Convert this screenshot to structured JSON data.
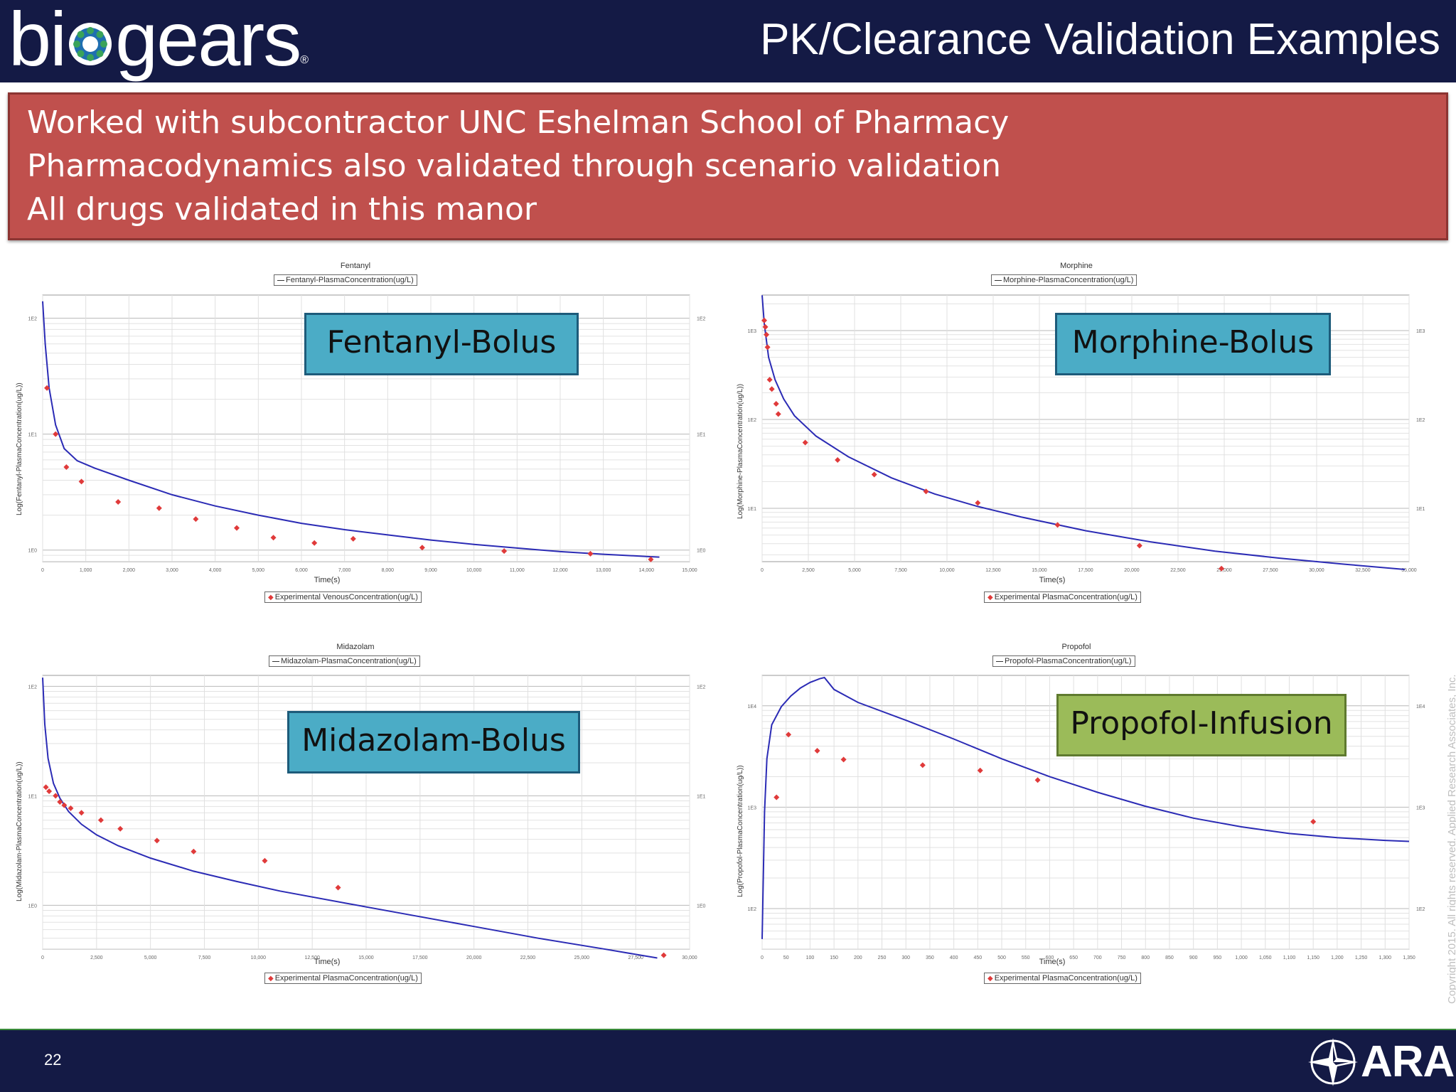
{
  "header": {
    "logo_text_a": "bi",
    "logo_text_b": "gears",
    "logo_reg": "®",
    "title": "PK/Clearance Validation Examples"
  },
  "bullets": [
    "Worked with subcontractor UNC Eshelman School of Pharmacy",
    "Pharmacodynamics also validated through scenario validation",
    "All drugs validated in this manor"
  ],
  "footer": {
    "page_number": "22",
    "logo_text": "ARA",
    "copyright": "Copyright 2015. All rights reserved. Applied Research Associates, Inc."
  },
  "colors": {
    "header_bg": "#141a45",
    "callout_blue": "#4bacc6",
    "callout_green": "#9bbb59",
    "model_line": "#2b2bb5",
    "experimental_points": "#e03a3a",
    "red_box": "#c0504d"
  },
  "chart_data": [
    {
      "type": "line",
      "title": "Fentanyl",
      "callout": "Fentanyl-Bolus",
      "xlabel": "Time(s)",
      "ylabel": "Log(Fentanyl-PlasmaConcentration(ug/L))",
      "legend_top": "Fentanyl-PlasmaConcentration(ug/L)",
      "legend_bottom": "Experimental VenousConcentration(ug/L)",
      "xlim": [
        0,
        15000
      ],
      "ylim_log10": [
        -0.1,
        2.2
      ],
      "log_y": true,
      "x_ticks": [
        "0",
        "1,000",
        "2,000",
        "3,000",
        "4,000",
        "5,000",
        "6,000",
        "7,000",
        "8,000",
        "9,000",
        "10,000",
        "11,000",
        "12,000",
        "13,000",
        "14,000",
        "15,000"
      ],
      "y_ticks": [
        {
          "label": "1E0",
          "log": 0
        },
        {
          "label": "1E1",
          "log": 1
        },
        {
          "label": "1E2",
          "log": 2
        }
      ],
      "series": [
        {
          "name": "Fentanyl-PlasmaConcentration(ug/L)",
          "kind": "line",
          "x": [
            0,
            60,
            150,
            300,
            500,
            800,
            1200,
            2000,
            3000,
            4000,
            5000,
            6000,
            7000,
            8000,
            9000,
            10000,
            11000,
            12000,
            13000,
            14000,
            14300
          ],
          "y": [
            140,
            60,
            25,
            12,
            7.5,
            5.9,
            5.1,
            4.0,
            3.0,
            2.4,
            2.0,
            1.7,
            1.5,
            1.35,
            1.22,
            1.12,
            1.04,
            0.97,
            0.92,
            0.88,
            0.87
          ]
        },
        {
          "name": "Experimental VenousConcentration(ug/L)",
          "kind": "scatter",
          "x": [
            100,
            300,
            550,
            900,
            1750,
            2700,
            3550,
            4500,
            5350,
            6300,
            7200,
            8800,
            10700,
            12700,
            14100
          ],
          "y": [
            25,
            10,
            5.2,
            3.9,
            2.6,
            2.3,
            1.85,
            1.55,
            1.28,
            1.15,
            1.25,
            1.05,
            0.98,
            0.93,
            0.83
          ]
        }
      ]
    },
    {
      "type": "line",
      "title": "Morphine",
      "callout": "Morphine-Bolus",
      "xlabel": "Time(s)",
      "ylabel": "Log(Morphine-PlasmaConcentration(ug/L))",
      "legend_top": "Morphine-PlasmaConcentration(ug/L)",
      "legend_bottom": "Experimental PlasmaConcentration(ug/L)",
      "xlim": [
        0,
        30000
      ],
      "ylim_log10": [
        0.4,
        3.4
      ],
      "log_y": true,
      "x_ticks": [
        "0",
        "2,500",
        "5,000",
        "7,500",
        "10,000",
        "12,500",
        "15,000",
        "17,500",
        "20,000",
        "22,500",
        "25,000",
        "27,500",
        "30,000",
        "32,500",
        "35,000"
      ],
      "y_ticks": [
        {
          "label": "1E1",
          "log": 1
        },
        {
          "label": "1E2",
          "log": 2
        },
        {
          "label": "1E3",
          "log": 3
        }
      ],
      "series": [
        {
          "name": "Morphine-PlasmaConcentration(ug/L)",
          "kind": "line",
          "x": [
            0,
            100,
            300,
            600,
            1000,
            1500,
            2500,
            4000,
            6000,
            8000,
            10000,
            12000,
            15000,
            18000,
            21000,
            24000,
            27000,
            29800
          ],
          "y": [
            2500,
            1200,
            500,
            280,
            170,
            110,
            65,
            38,
            22,
            14.5,
            10.5,
            8.0,
            5.6,
            4.2,
            3.3,
            2.75,
            2.35,
            2.05
          ]
        },
        {
          "name": "Experimental PlasmaConcentration(ug/L)",
          "kind": "scatter",
          "x": [
            100,
            150,
            200,
            250,
            350,
            450,
            650,
            750,
            2000,
            3500,
            5200,
            7600,
            10000,
            13700,
            17500,
            21300
          ],
          "y": [
            1300,
            1100,
            900,
            650,
            280,
            220,
            150,
            115,
            55,
            35,
            24,
            15.5,
            11.5,
            6.5,
            3.8,
            2.1
          ]
        }
      ]
    },
    {
      "type": "line",
      "title": "Midazolam",
      "callout": "Midazolam-Bolus",
      "xlabel": "Time(s)",
      "ylabel": "Log(Midazolam-PlasmaConcentration(ug/L))",
      "legend_top": "Midazolam-PlasmaConcentration(ug/L)",
      "legend_bottom": "Experimental PlasmaConcentration(ug/L)",
      "xlim": [
        0,
        30000
      ],
      "ylim_log10": [
        -0.4,
        2.1
      ],
      "log_y": true,
      "x_ticks": [
        "0",
        "2,500",
        "5,000",
        "7,500",
        "10,000",
        "12,500",
        "15,000",
        "17,500",
        "20,000",
        "22,500",
        "25,000",
        "27,500",
        "30,000"
      ],
      "y_ticks": [
        {
          "label": "1E0",
          "log": 0
        },
        {
          "label": "1E1",
          "log": 1
        },
        {
          "label": "1E2",
          "log": 2
        }
      ],
      "series": [
        {
          "name": "Midazolam-PlasmaConcentration(ug/L)",
          "kind": "line",
          "x": [
            0,
            100,
            250,
            500,
            800,
            1200,
            1800,
            2500,
            3500,
            5000,
            7000,
            9000,
            11000,
            14000,
            17000,
            20000,
            23000,
            26000,
            28500
          ],
          "y": [
            120,
            45,
            22,
            13,
            9.5,
            7.2,
            5.5,
            4.4,
            3.5,
            2.7,
            2.05,
            1.65,
            1.35,
            1.05,
            0.82,
            0.64,
            0.5,
            0.4,
            0.33
          ]
        },
        {
          "name": "Experimental PlasmaConcentration(ug/L)",
          "kind": "scatter",
          "x": [
            150,
            300,
            600,
            800,
            1000,
            1300,
            1800,
            2700,
            3600,
            5300,
            7000,
            10300,
            13700,
            28800
          ],
          "y": [
            12,
            11,
            10,
            8.8,
            8.2,
            7.7,
            7.0,
            6.0,
            5.0,
            3.9,
            3.1,
            2.55,
            1.45,
            0.35
          ]
        }
      ]
    },
    {
      "type": "line",
      "title": "Propofol",
      "callout": "Propofol-Infusion",
      "xlabel": "Time(s)",
      "ylabel": "Log(Propofol-PlasmaConcentration(ug/L))",
      "legend_top": "Propofol-PlasmaConcentration(ug/L)",
      "legend_bottom": "Experimental PlasmaConcentration(ug/L)",
      "xlim": [
        0,
        1350
      ],
      "ylim_log10": [
        1.6,
        4.3
      ],
      "log_y": true,
      "x_ticks": [
        "0",
        "50",
        "100",
        "150",
        "200",
        "250",
        "300",
        "350",
        "400",
        "450",
        "500",
        "550",
        "600",
        "650",
        "700",
        "750",
        "800",
        "850",
        "900",
        "950",
        "1,000",
        "1,050",
        "1,100",
        "1,150",
        "1,200",
        "1,250",
        "1,300",
        "1,350"
      ],
      "y_ticks": [
        {
          "label": "1E2",
          "log": 2
        },
        {
          "label": "1E3",
          "log": 3
        },
        {
          "label": "1E4",
          "log": 4
        }
      ],
      "series": [
        {
          "name": "Propofol-PlasmaConcentration(ug/L)",
          "kind": "line",
          "x": [
            0,
            5,
            10,
            20,
            40,
            60,
            80,
            100,
            120,
            130,
            150,
            200,
            300,
            400,
            500,
            600,
            700,
            800,
            900,
            1000,
            1100,
            1200,
            1300,
            1350
          ],
          "y": [
            50,
            900,
            3000,
            6500,
            9800,
            12500,
            15000,
            17000,
            18500,
            19000,
            14500,
            10800,
            7200,
            4700,
            3000,
            2000,
            1400,
            1020,
            780,
            640,
            550,
            500,
            470,
            460
          ]
        },
        {
          "name": "Experimental PlasmaConcentration(ug/L)",
          "kind": "scatter",
          "x": [
            30,
            55,
            115,
            170,
            335,
            455,
            575,
            1150
          ],
          "y": [
            1250,
            5200,
            3600,
            2950,
            2600,
            2300,
            1850,
            720
          ]
        }
      ]
    }
  ]
}
